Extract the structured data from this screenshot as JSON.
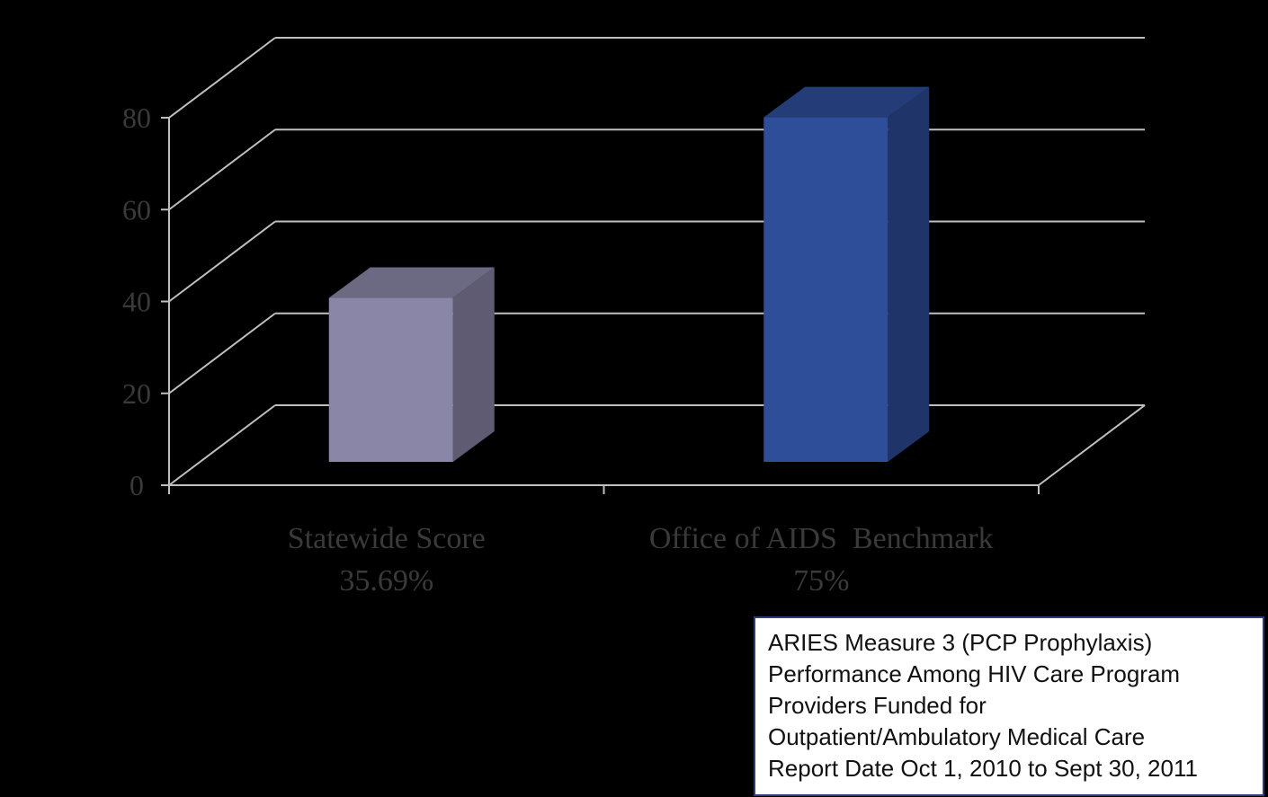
{
  "chart_data": {
    "type": "bar",
    "style": "3d",
    "categories": [
      "Statewide Score",
      "Office of AIDS  Benchmark"
    ],
    "category_sublabels": [
      "35.69%",
      "75%"
    ],
    "values": [
      35.69,
      75
    ],
    "bar_colors": [
      "#8a86a8",
      "#2e4e9a"
    ],
    "ylim": [
      0,
      80
    ],
    "yticks": [
      0,
      20,
      40,
      60,
      80
    ],
    "ytick_labels": [
      "0",
      "20",
      "40",
      "60",
      "80"
    ],
    "grid": true,
    "title": "",
    "xlabel": "",
    "ylabel": ""
  },
  "note": {
    "lines": [
      "ARIES Measure 3 (PCP Prophylaxis)",
      "Performance Among HIV Care Program",
      "Providers Funded for",
      "Outpatient/Ambulatory Medical Care",
      "Report Date Oct 1, 2010 to Sept 30, 2011"
    ]
  },
  "colors": {
    "background": "#000000",
    "gridline": "#bfbfbf",
    "label_text": "#3a3a3a",
    "note_border": "#2b3f7a"
  }
}
